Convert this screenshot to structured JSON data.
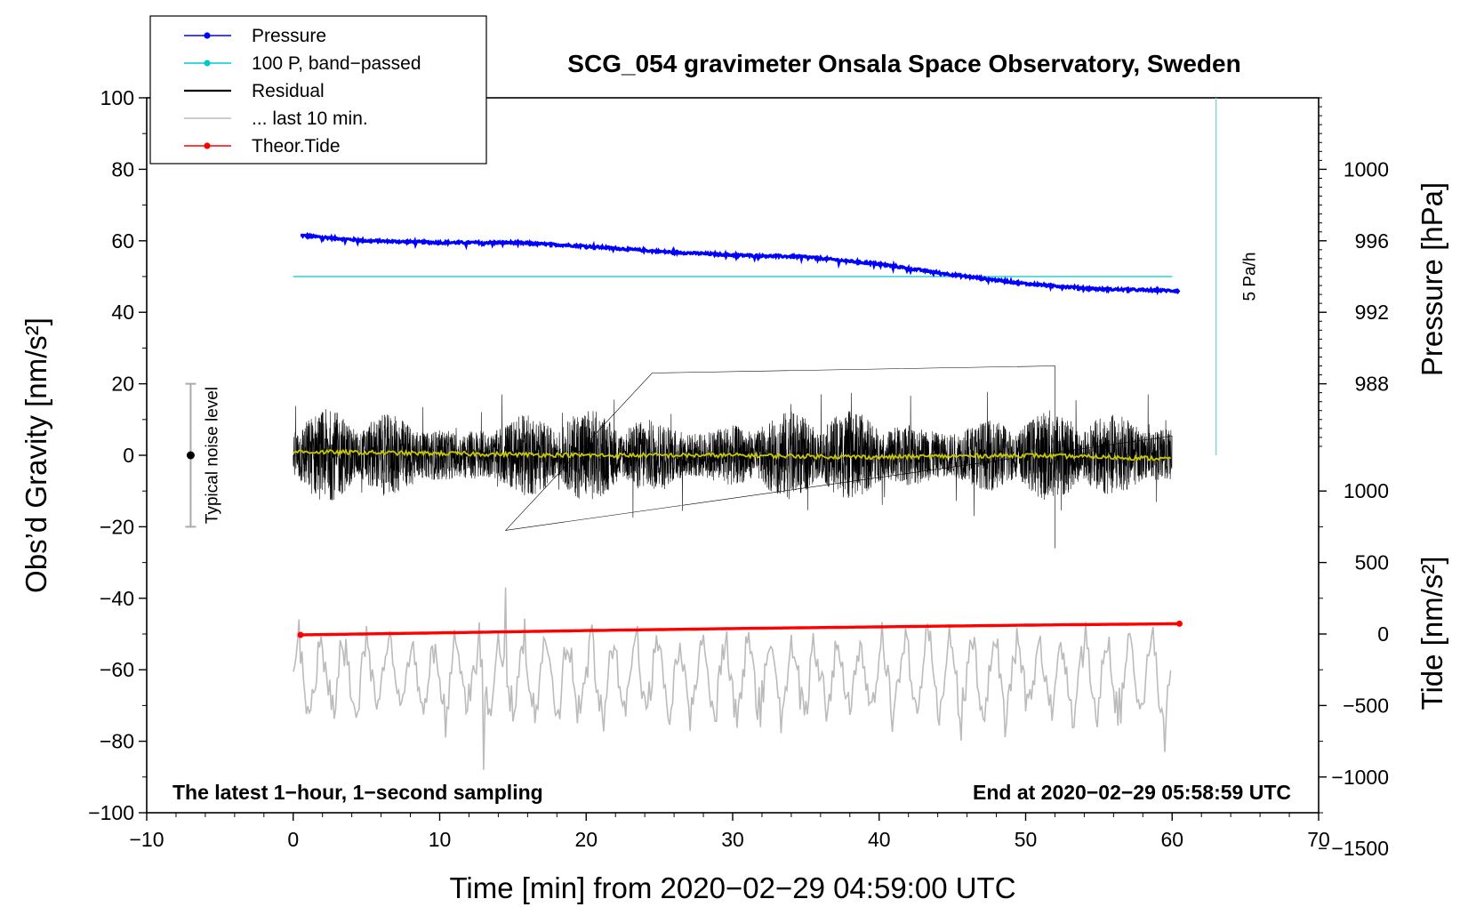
{
  "chart_data": {
    "type": "line",
    "title": "SCG_054 gravimeter Onsala Space Observatory, Sweden",
    "xlabel": "Time [min] from 2020−02−29 04:59:00 UTC",
    "ylabel_left": "Obs’d Gravity [nm/s²]",
    "ylabel_pressure": "Pressure [hPa]",
    "ylabel_tide": "Tide [nm/s²]",
    "xlim": [
      -10,
      70
    ],
    "ylim": [
      -100,
      100
    ],
    "x_ticks": [
      -10,
      0,
      10,
      20,
      30,
      40,
      50,
      60,
      70
    ],
    "x_tick_labels": [
      "−10",
      "0",
      "10",
      "20",
      "30",
      "40",
      "50",
      "60",
      "70"
    ],
    "y_ticks": [
      100,
      80,
      60,
      40,
      20,
      0,
      -20,
      -40,
      -60,
      -80,
      -100
    ],
    "y_tick_labels": [
      "100",
      "80",
      "60",
      "40",
      "20",
      "0",
      "−20",
      "−40",
      "−60",
      "−80",
      "−100"
    ],
    "pressure_axis": {
      "ticks": [
        1000,
        996,
        992,
        988
      ],
      "tick_labels": [
        "1000",
        "996",
        "992",
        "988"
      ],
      "gravity_at_1000": 80,
      "gravity_per_hpa": 5
    },
    "tide_axis": {
      "ticks": [
        1000,
        500,
        0,
        -500,
        -1000,
        -1500
      ],
      "tick_labels": [
        "1000",
        "500",
        "0",
        "−500",
        "−1000",
        "−1500"
      ],
      "gravity_at_zero": -50,
      "gravity_per_unit": 0.04
    },
    "legend": [
      {
        "label": "Pressure",
        "color": "#0000ff",
        "marker": true
      },
      {
        "label": "100 P, band−passed",
        "color": "#00c8c8",
        "marker": true
      },
      {
        "label": "Residual",
        "color": "#000000",
        "marker": false
      },
      {
        "label": "... last 10 min.",
        "color": "#bbbbbb",
        "marker": false
      },
      {
        "label": "Theor.Tide",
        "color": "#ff0000",
        "marker": true
      }
    ],
    "series": [
      {
        "name": "Pressure",
        "color": "#0000ff",
        "unit": "hPa",
        "x": [
          0.5,
          5,
          10,
          15,
          20,
          25,
          30,
          35,
          40,
          45,
          50,
          55,
          60.5
        ],
        "values": [
          996.3,
          996.0,
          995.9,
          995.9,
          995.7,
          995.4,
          995.2,
          995.1,
          994.7,
          994.1,
          993.6,
          993.3,
          993.2
        ]
      },
      {
        "name": "100 P, band−passed",
        "color": "#00c8c8",
        "x": [
          0,
          60
        ],
        "values": [
          50,
          50
        ]
      },
      {
        "name": "Residual",
        "color": "#000000",
        "x_range": [
          0,
          60
        ],
        "envelope": [
          -18,
          18
        ],
        "extremes": [
          [
            14.5,
            -21
          ],
          [
            24.5,
            23
          ],
          [
            52,
            25
          ],
          [
            52,
            -26
          ]
        ]
      },
      {
        "name": "Residual smoothed",
        "color": "#c8c800",
        "x": [
          0,
          10,
          20,
          30,
          40,
          50,
          60
        ],
        "values": [
          1,
          0.5,
          0,
          0,
          -0.5,
          0,
          -1
        ]
      },
      {
        "name": "... last 10 min.",
        "color": "#bbbbbb",
        "x_range": [
          0,
          60
        ],
        "center": -62,
        "extremes": [
          [
            13,
            -88
          ],
          [
            14.5,
            -37
          ],
          [
            59.5,
            -83
          ]
        ]
      },
      {
        "name": "Theor.Tide",
        "color": "#ff0000",
        "unit": "nm/s²",
        "x": [
          0.5,
          10,
          20,
          30,
          40,
          50,
          60.5
        ],
        "values": [
          -6,
          8,
          24,
          38,
          50,
          62,
          72
        ]
      }
    ],
    "noise_bar": {
      "label": "Typical noise level",
      "x": -7,
      "center": 0,
      "range": [
        -20,
        20
      ]
    },
    "pressure_rate_bar": {
      "label": "5 Pa/h",
      "x": 63,
      "range": [
        0,
        100
      ]
    }
  },
  "footer": {
    "left": "The latest 1−hour, 1−second sampling",
    "right": "End at 2020−02−29 05:58:59 UTC"
  }
}
